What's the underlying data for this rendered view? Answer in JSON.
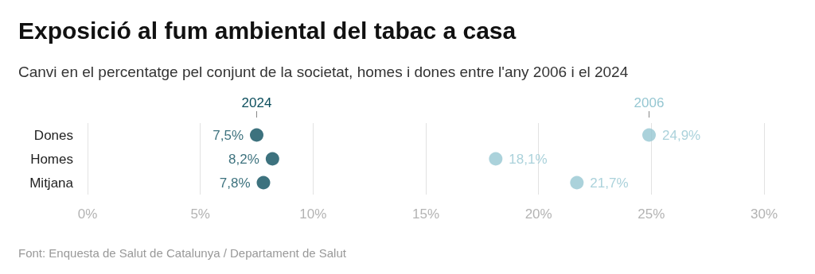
{
  "chart_data": {
    "type": "scatter",
    "orientation": "horizontal",
    "title": "Exposició al fum ambiental del tabac a casa",
    "subtitle": "Canvi en el percentatge pel conjunt de la societat, homes i dones entre l'any 2006 i el 2024",
    "categories": [
      "Dones",
      "Homes",
      "Mitjana"
    ],
    "series": [
      {
        "name": "2024",
        "color": "#0d4f5e",
        "values": [
          7.5,
          8.2,
          7.8
        ],
        "value_labels": [
          "7,5%",
          "8,2%",
          "7,8%"
        ]
      },
      {
        "name": "2006",
        "color": "#96c7d2",
        "values": [
          24.9,
          18.1,
          21.7
        ],
        "value_labels": [
          "24,9%",
          "18,1%",
          "21,7%"
        ]
      }
    ],
    "xlim": [
      0,
      30
    ],
    "xticks": [
      {
        "value": 0,
        "label": "0%"
      },
      {
        "value": 5,
        "label": "5%"
      },
      {
        "value": 10,
        "label": "10%"
      },
      {
        "value": 15,
        "label": "15%"
      },
      {
        "value": 20,
        "label": "20%"
      },
      {
        "value": 25,
        "label": "25%"
      },
      {
        "value": 30,
        "label": "30%"
      }
    ],
    "grid": "x",
    "legend": false,
    "marker": "circle",
    "annotations": [
      "Font: Enquesta de Salut de Catalunya / Departament de Salut"
    ]
  }
}
